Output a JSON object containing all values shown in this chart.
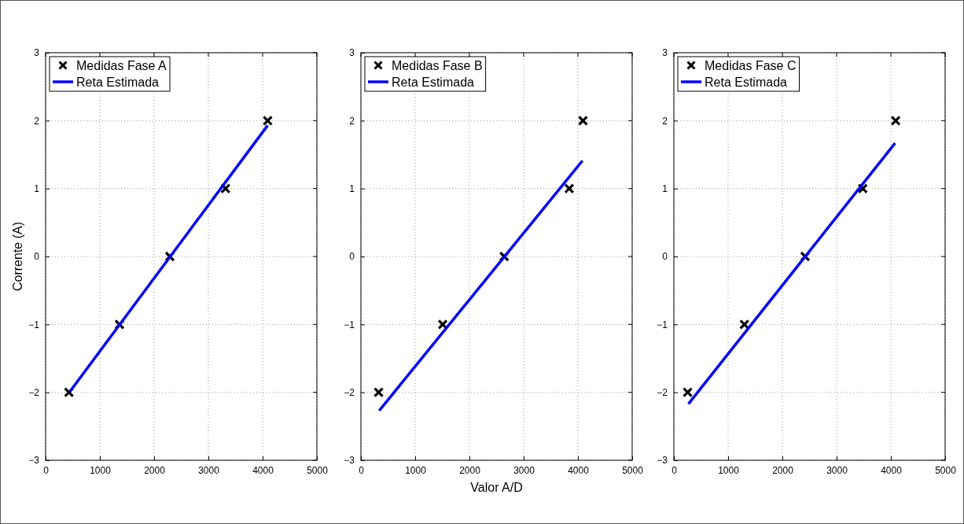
{
  "chart_data": [
    {
      "type": "scatter",
      "ylabel": "Corrente (A)",
      "xlim": [
        0,
        5000
      ],
      "ylim": [
        -3,
        3
      ],
      "xticks": [
        0,
        1000,
        2000,
        3000,
        4000,
        5000
      ],
      "yticks": [
        {
          "value": -3,
          "label": "−3"
        },
        {
          "value": -2,
          "label": "−2"
        },
        {
          "value": -1,
          "label": "−1"
        },
        0,
        1,
        2,
        3
      ],
      "grid": true,
      "legend": "top left",
      "series": [
        {
          "name": "Medidas Fase A",
          "type": "scatter",
          "marker": "cross",
          "color": "#000000",
          "x": [
            430,
            1362,
            2290,
            3316,
            4093
          ],
          "values": [
            -2,
            -1,
            0,
            1,
            2
          ]
        },
        {
          "name": "Reta Estimada",
          "type": "line",
          "marker": "none",
          "line_style": "solid",
          "color": "#0000ff",
          "x": [
            455,
            4093
          ],
          "values": [
            -1.98,
            1.93
          ]
        }
      ]
    },
    {
      "type": "scatter",
      "xlabel": "Valor A/D",
      "xlim": [
        0,
        5000
      ],
      "ylim": [
        -3,
        3
      ],
      "xticks": [
        0,
        1000,
        2000,
        3000,
        4000,
        5000
      ],
      "yticks": [
        {
          "value": -3,
          "label": "−3"
        },
        {
          "value": -2,
          "label": "−2"
        },
        {
          "value": -1,
          "label": "−1"
        },
        0,
        1,
        2,
        3
      ],
      "grid": true,
      "legend": "top left",
      "series": [
        {
          "name": "Medidas Fase B",
          "type": "scatter",
          "marker": "cross",
          "color": "#000000",
          "x": [
            326,
            1508,
            2642,
            3839,
            4093
          ],
          "values": [
            -2,
            -1,
            0,
            1,
            2
          ]
        },
        {
          "name": "Reta Estimada",
          "type": "line",
          "marker": "none",
          "line_style": "solid",
          "color": "#0000ff",
          "x": [
            337,
            4083
          ],
          "values": [
            -2.27,
            1.41
          ]
        }
      ]
    },
    {
      "type": "scatter",
      "xlim": [
        0,
        5000
      ],
      "ylim": [
        -3,
        3
      ],
      "xticks": [
        0,
        1000,
        2000,
        3000,
        4000,
        5000
      ],
      "yticks": [
        {
          "value": -3,
          "label": "−3"
        },
        {
          "value": -2,
          "label": "−2"
        },
        {
          "value": -1,
          "label": "−1"
        },
        0,
        1,
        2,
        3
      ],
      "grid": true,
      "legend": "top left",
      "series": [
        {
          "name": "Medidas Fase C",
          "type": "scatter",
          "marker": "cross",
          "color": "#000000",
          "x": [
            254,
            1300,
            2420,
            3482,
            4088
          ],
          "values": [
            -2,
            -1,
            0,
            1,
            2
          ]
        },
        {
          "name": "Reta Estimada",
          "type": "line",
          "marker": "none",
          "line_style": "solid",
          "color": "#0000ff",
          "x": [
            269,
            4078
          ],
          "values": [
            -2.17,
            1.67
          ]
        }
      ]
    }
  ]
}
